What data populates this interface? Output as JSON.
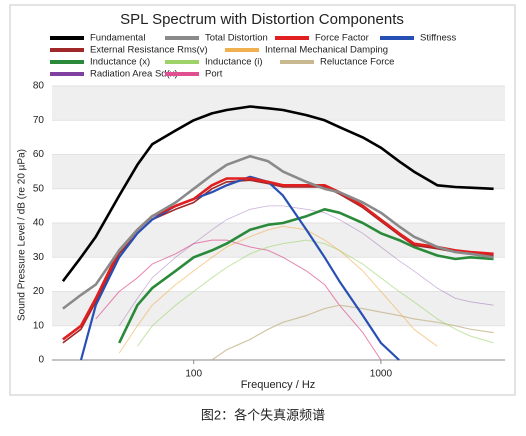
{
  "chart_data": {
    "type": "line",
    "title": "SPL Spectrum with Distortion Components",
    "x_label": "Frequency / Hz",
    "y_label": "Sound Pressure Level / dB (re 20 µPa)",
    "caption": "图2：各个失真源频谱",
    "x_scale": "log",
    "grid": true,
    "xlim": [
      17.5,
      4600
    ],
    "ylim": [
      0,
      80
    ],
    "xticks": [
      100,
      1000
    ],
    "yticks": [
      0,
      10,
      20,
      30,
      40,
      50,
      60,
      70,
      80
    ],
    "x": [
      20,
      25,
      30,
      40,
      50,
      60,
      80,
      100,
      125,
      150,
      200,
      250,
      300,
      400,
      500,
      600,
      800,
      1000,
      1250,
      1500,
      2000,
      2500,
      3000,
      4000
    ],
    "series": [
      {
        "name": "Fundamental",
        "color": "#000000",
        "values": [
          23,
          30,
          36,
          48,
          57,
          63,
          67,
          70,
          72,
          73,
          74,
          73.5,
          73,
          71.5,
          70,
          68,
          65,
          62,
          58,
          55,
          51,
          50.5,
          50.3,
          50
        ]
      },
      {
        "name": "Total Distortion",
        "color": "#8a8a8a",
        "values": [
          15,
          19,
          22,
          32,
          38,
          42,
          46,
          50,
          54,
          57,
          59.5,
          58,
          55,
          52,
          50,
          49,
          46,
          43,
          39,
          36,
          33,
          31.5,
          31,
          30
        ]
      },
      {
        "name": "Force Factor",
        "color": "#e02020",
        "values": [
          6,
          10,
          18,
          32,
          38,
          42,
          45,
          47,
          51,
          53,
          53,
          52,
          51,
          51,
          51,
          49,
          45,
          41,
          37,
          34,
          33,
          32,
          31.5,
          31
        ]
      },
      {
        "name": "Stiffness",
        "color": "#2850b4",
        "values": [
          null,
          0,
          16,
          30,
          37,
          41,
          45,
          47,
          49,
          51,
          53.5,
          52,
          48,
          38,
          30,
          23,
          13,
          5,
          0,
          null,
          null,
          null,
          null,
          null
        ]
      },
      {
        "name": "External  Resistance Rms(v)",
        "color": "#a02828",
        "values": [
          5,
          9,
          17,
          31,
          37,
          41,
          44,
          46,
          50,
          52,
          52.5,
          51.5,
          50.5,
          50.5,
          50.5,
          48.5,
          44.5,
          40.5,
          36.5,
          33.5,
          32.5,
          31.5,
          31,
          30.5
        ]
      },
      {
        "name": "Internal Mechanical Damping",
        "color": "#f0b050",
        "values": [
          null,
          null,
          null,
          2,
          10,
          16,
          22,
          26,
          30,
          33,
          36,
          38,
          39,
          38,
          35,
          32,
          26,
          20,
          14,
          9,
          4,
          null,
          null,
          null
        ]
      },
      {
        "name": "Inductance (x)",
        "color": "#2a8a3a",
        "values": [
          null,
          null,
          null,
          5,
          16,
          21,
          26,
          30,
          32,
          34,
          38,
          39.5,
          40,
          42,
          44,
          43,
          40,
          37,
          35,
          33,
          30.5,
          29.5,
          30,
          29.5
        ]
      },
      {
        "name": "Inductance (i)",
        "color": "#9ed36a",
        "values": [
          null,
          null,
          null,
          null,
          4,
          10,
          16,
          20,
          24,
          27,
          31,
          33,
          34,
          35,
          34,
          32,
          28,
          24,
          20,
          17,
          12,
          9,
          7,
          5
        ]
      },
      {
        "name": "Reluctance Force",
        "color": "#c8b890",
        "values": [
          null,
          null,
          null,
          null,
          null,
          null,
          null,
          null,
          0,
          3,
          6,
          9,
          11,
          13,
          15,
          16,
          15,
          14,
          13,
          12,
          11,
          10,
          9,
          8
        ]
      },
      {
        "name": "Radiation Area Sd(x)",
        "color": "#8040a0",
        "values": [
          null,
          null,
          null,
          10,
          18,
          24,
          30,
          34,
          38,
          41,
          44,
          45,
          45,
          44,
          43,
          41,
          37,
          33,
          29,
          26,
          21,
          18,
          17,
          16
        ]
      },
      {
        "name": "Port",
        "color": "#e05090",
        "values": [
          null,
          null,
          12,
          20,
          24,
          28,
          31,
          34,
          35,
          35,
          33,
          32,
          30,
          26,
          22,
          16,
          8,
          0,
          null,
          null,
          null,
          null,
          null,
          null
        ]
      }
    ]
  }
}
